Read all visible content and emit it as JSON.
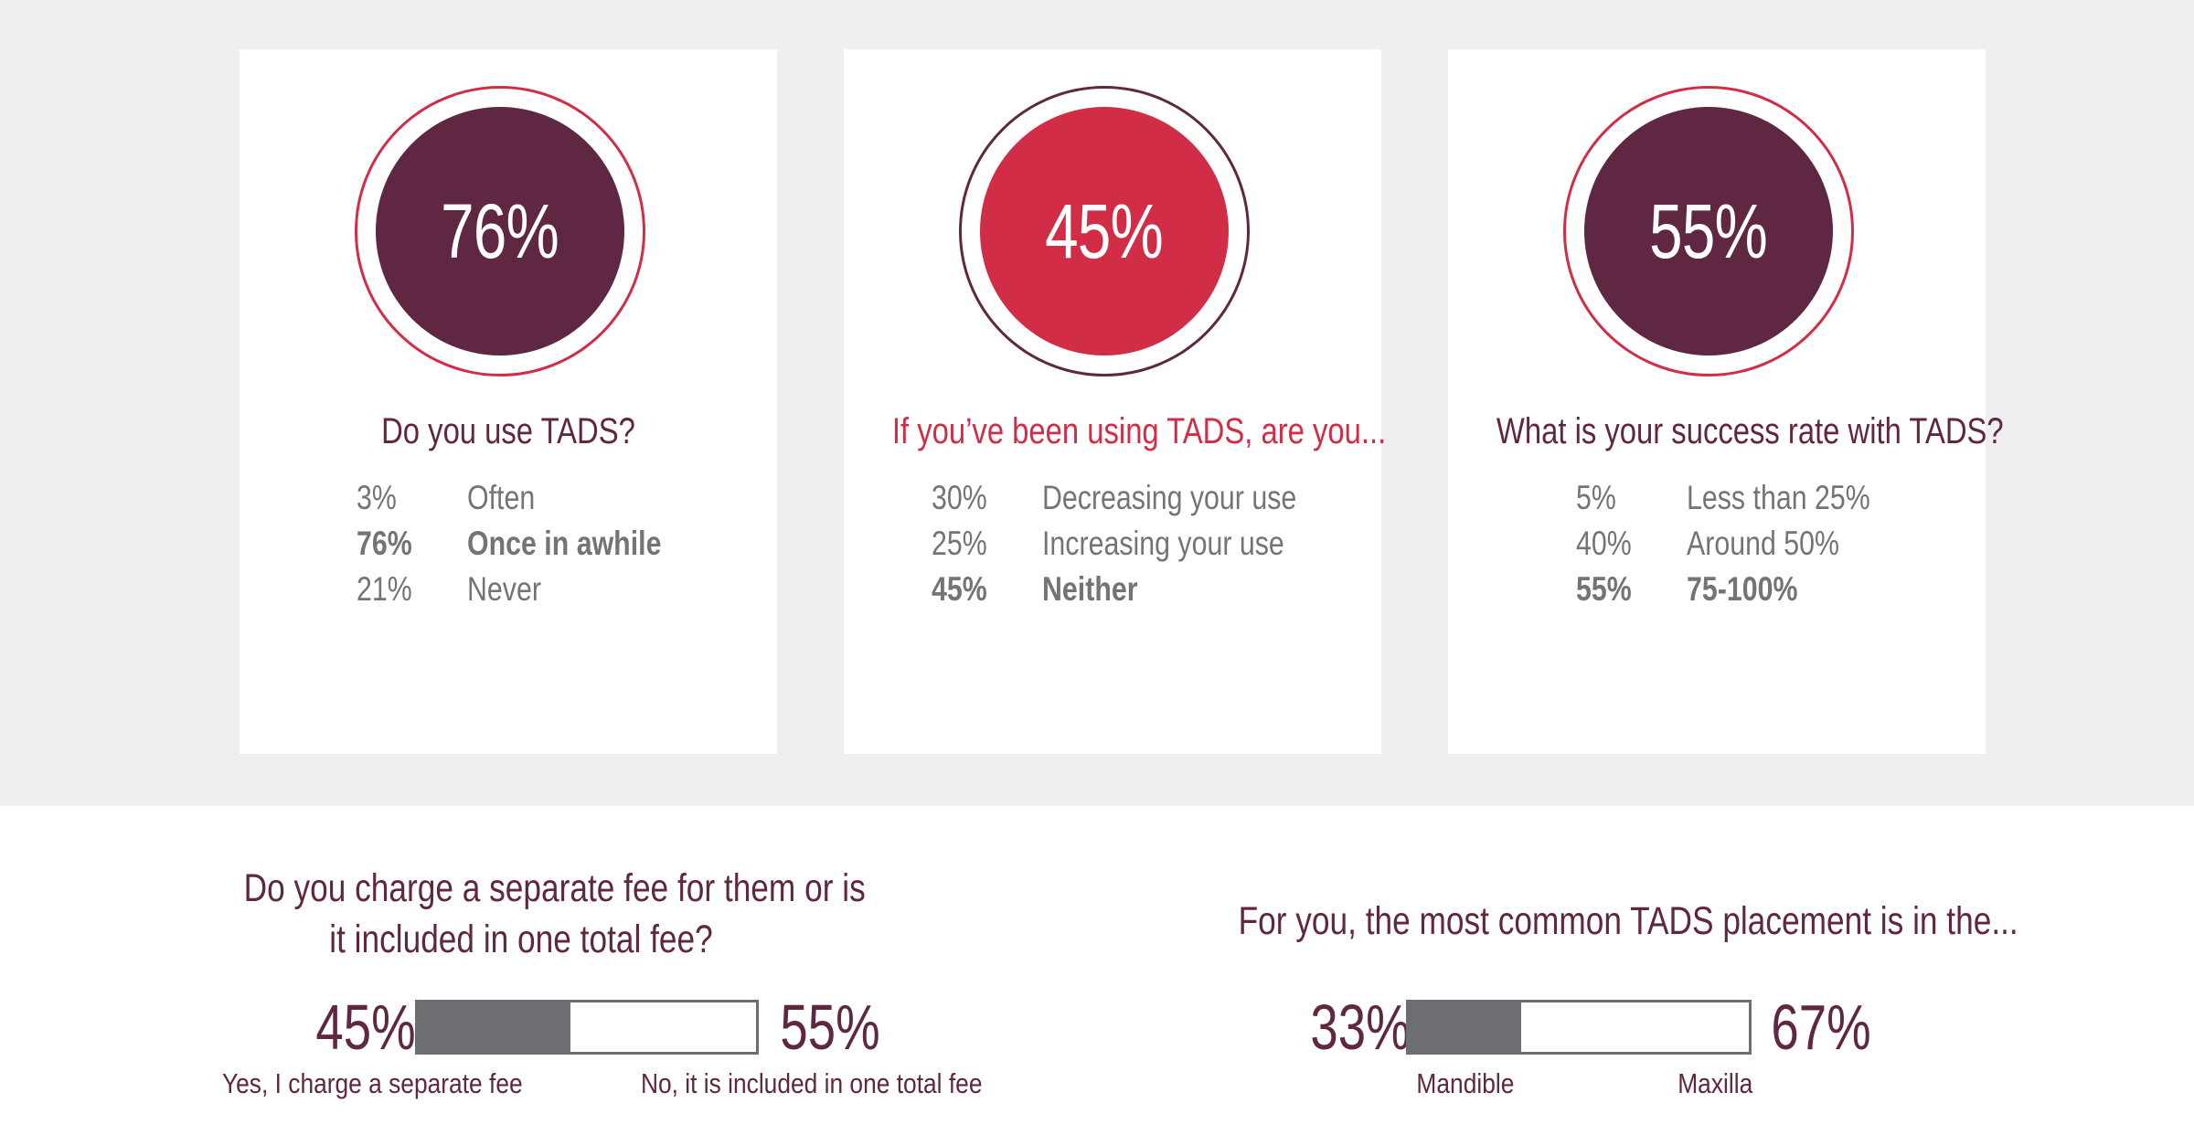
{
  "colors": {
    "maroon": "#5f2741",
    "red": "#d12d47",
    "gray_text": "#737477",
    "bar_gray": "#6d6e71",
    "background_band": "#efeff1"
  },
  "chart_data": [
    {
      "type": "table",
      "highlight_value": "76%",
      "title": "Do you use TADS?",
      "rows": [
        {
          "pct": "3%",
          "label": "Often",
          "highlight": false
        },
        {
          "pct": "76%",
          "label": "Once in awhile",
          "highlight": true
        },
        {
          "pct": "21%",
          "label": "Never",
          "highlight": false
        }
      ],
      "values": [
        3,
        76,
        21
      ],
      "categories": [
        "Often",
        "Once in awhile",
        "Never"
      ]
    },
    {
      "type": "table",
      "highlight_value": "45%",
      "title": "If you’ve been using TADS, are you...",
      "rows": [
        {
          "pct": "30%",
          "label": "Decreasing your use",
          "highlight": false
        },
        {
          "pct": "25%",
          "label": "Increasing your use",
          "highlight": false
        },
        {
          "pct": "45%",
          "label": "Neither",
          "highlight": true
        }
      ],
      "values": [
        30,
        25,
        45
      ],
      "categories": [
        "Decreasing your use",
        "Increasing your use",
        "Neither"
      ]
    },
    {
      "type": "table",
      "highlight_value": "55%",
      "title": "What is your success rate with TADS?",
      "rows": [
        {
          "pct": "5%",
          "label": "Less than 25%",
          "highlight": false
        },
        {
          "pct": "40%",
          "label": "Around 50%",
          "highlight": false
        },
        {
          "pct": "55%",
          "label": "75-100%",
          "highlight": true
        }
      ],
      "values": [
        5,
        40,
        55
      ],
      "categories": [
        "Less than 25%",
        "Around 50%",
        "75-100%"
      ]
    },
    {
      "type": "bar",
      "title_line1": "Do you charge a separate fee for them or is",
      "title_line2": "it included in one total fee?",
      "left_value_label": "45%",
      "right_value_label": "55%",
      "left_caption": "Yes, I charge a separate fee",
      "right_caption": "No, it is included in one total fee",
      "values": [
        45,
        55
      ],
      "categories": [
        "Yes, I charge a separate fee",
        "No, it is included in one total fee"
      ]
    },
    {
      "type": "bar",
      "title": "For you, the most common TADS placement is in the...",
      "left_value_label": "33%",
      "right_value_label": "67%",
      "left_caption": "Mandible",
      "right_caption": "Maxilla",
      "values": [
        33,
        67
      ],
      "categories": [
        "Mandible",
        "Maxilla"
      ]
    }
  ]
}
